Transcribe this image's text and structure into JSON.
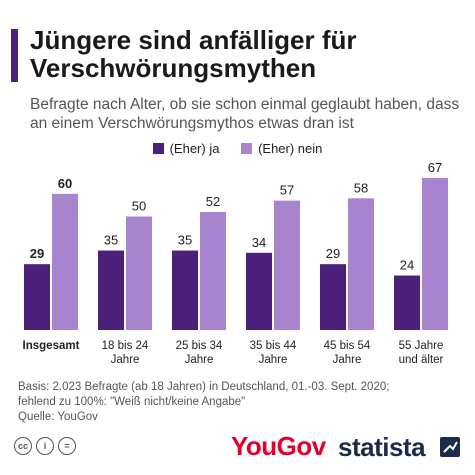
{
  "header": {
    "title": "Jüngere sind anfälliger für Verschwörungsmythen",
    "subtitle": "Befragte nach Alter, ob sie schon einmal geglaubt haben, dass an einem Verschwörungsmythos etwas dran ist",
    "accent_color": "#4b1f7a"
  },
  "chart_data": {
    "type": "bar",
    "categories": [
      "Insgesamt",
      "18 bis 24 Jahre",
      "25 bis 34 Jahre",
      "35 bis 44 Jahre",
      "45 bis 54 Jahre",
      "55 Jahre und älter"
    ],
    "category_lines": [
      [
        "Insgesamt"
      ],
      [
        "18 bis 24",
        "Jahre"
      ],
      [
        "25 bis 34",
        "Jahre"
      ],
      [
        "35 bis 44",
        "Jahre"
      ],
      [
        "45 bis 54",
        "Jahre"
      ],
      [
        "55 Jahre",
        "und älter"
      ]
    ],
    "series": [
      {
        "name": "(Eher) ja",
        "values": [
          29,
          35,
          35,
          34,
          29,
          24
        ],
        "color": "#4b1f7a"
      },
      {
        "name": "(Eher) nein",
        "values": [
          60,
          50,
          52,
          57,
          58,
          67
        ],
        "color": "#a884cf"
      }
    ],
    "ylim": [
      0,
      70
    ],
    "grid": false,
    "legend_position": "top-center",
    "bold_category_index": 0
  },
  "footnote": {
    "line1": "Basis: 2.023 Befragte (ab 18 Jahren) in Deutschland, 01.-03. Sept. 2020;",
    "line2": "fehlend zu 100%: \"Weiß nicht/keine Angabe\"",
    "line3": "Quelle: YouGov"
  },
  "footer": {
    "license_icons": [
      "cc-icon",
      "by-icon",
      "nd-icon"
    ],
    "license_glyphs": [
      "cc",
      "i",
      "="
    ],
    "yougov_logo": "YouGov",
    "statista_logo": "statista",
    "yougov_color": "#e4002b",
    "statista_color": "#1a2c4a"
  }
}
